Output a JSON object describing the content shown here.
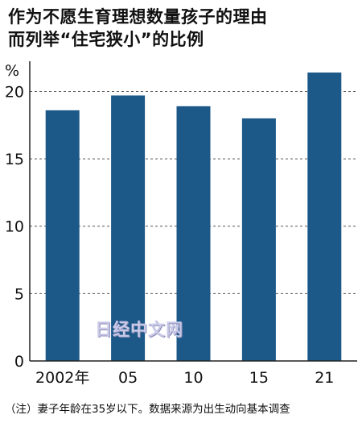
{
  "title_lines": [
    "作为不愿生育理想数量孩子的理由",
    "而列举“住宅狭小”的比例"
  ],
  "note": "（注）妻子年龄在35岁以下。数据来源为出生动向基本调查",
  "watermark": "日经中文网",
  "colors": {
    "bar": "#1c5888",
    "axis": "#222222",
    "grid": "#555555"
  },
  "chart_data": {
    "type": "bar",
    "title": "作为不愿生育理想数量孩子的理由而列举“住宅狭小”的比例",
    "ylabel": "%",
    "categories": [
      "2002年",
      "05",
      "10",
      "15",
      "21"
    ],
    "values": [
      18.6,
      19.7,
      18.9,
      18.0,
      21.4
    ],
    "ylim": [
      0,
      22
    ],
    "yticks": [
      0,
      5,
      10,
      15,
      20
    ],
    "ytick_labels": [
      "0",
      "5",
      "10",
      "15",
      "20"
    ],
    "grid": true
  }
}
